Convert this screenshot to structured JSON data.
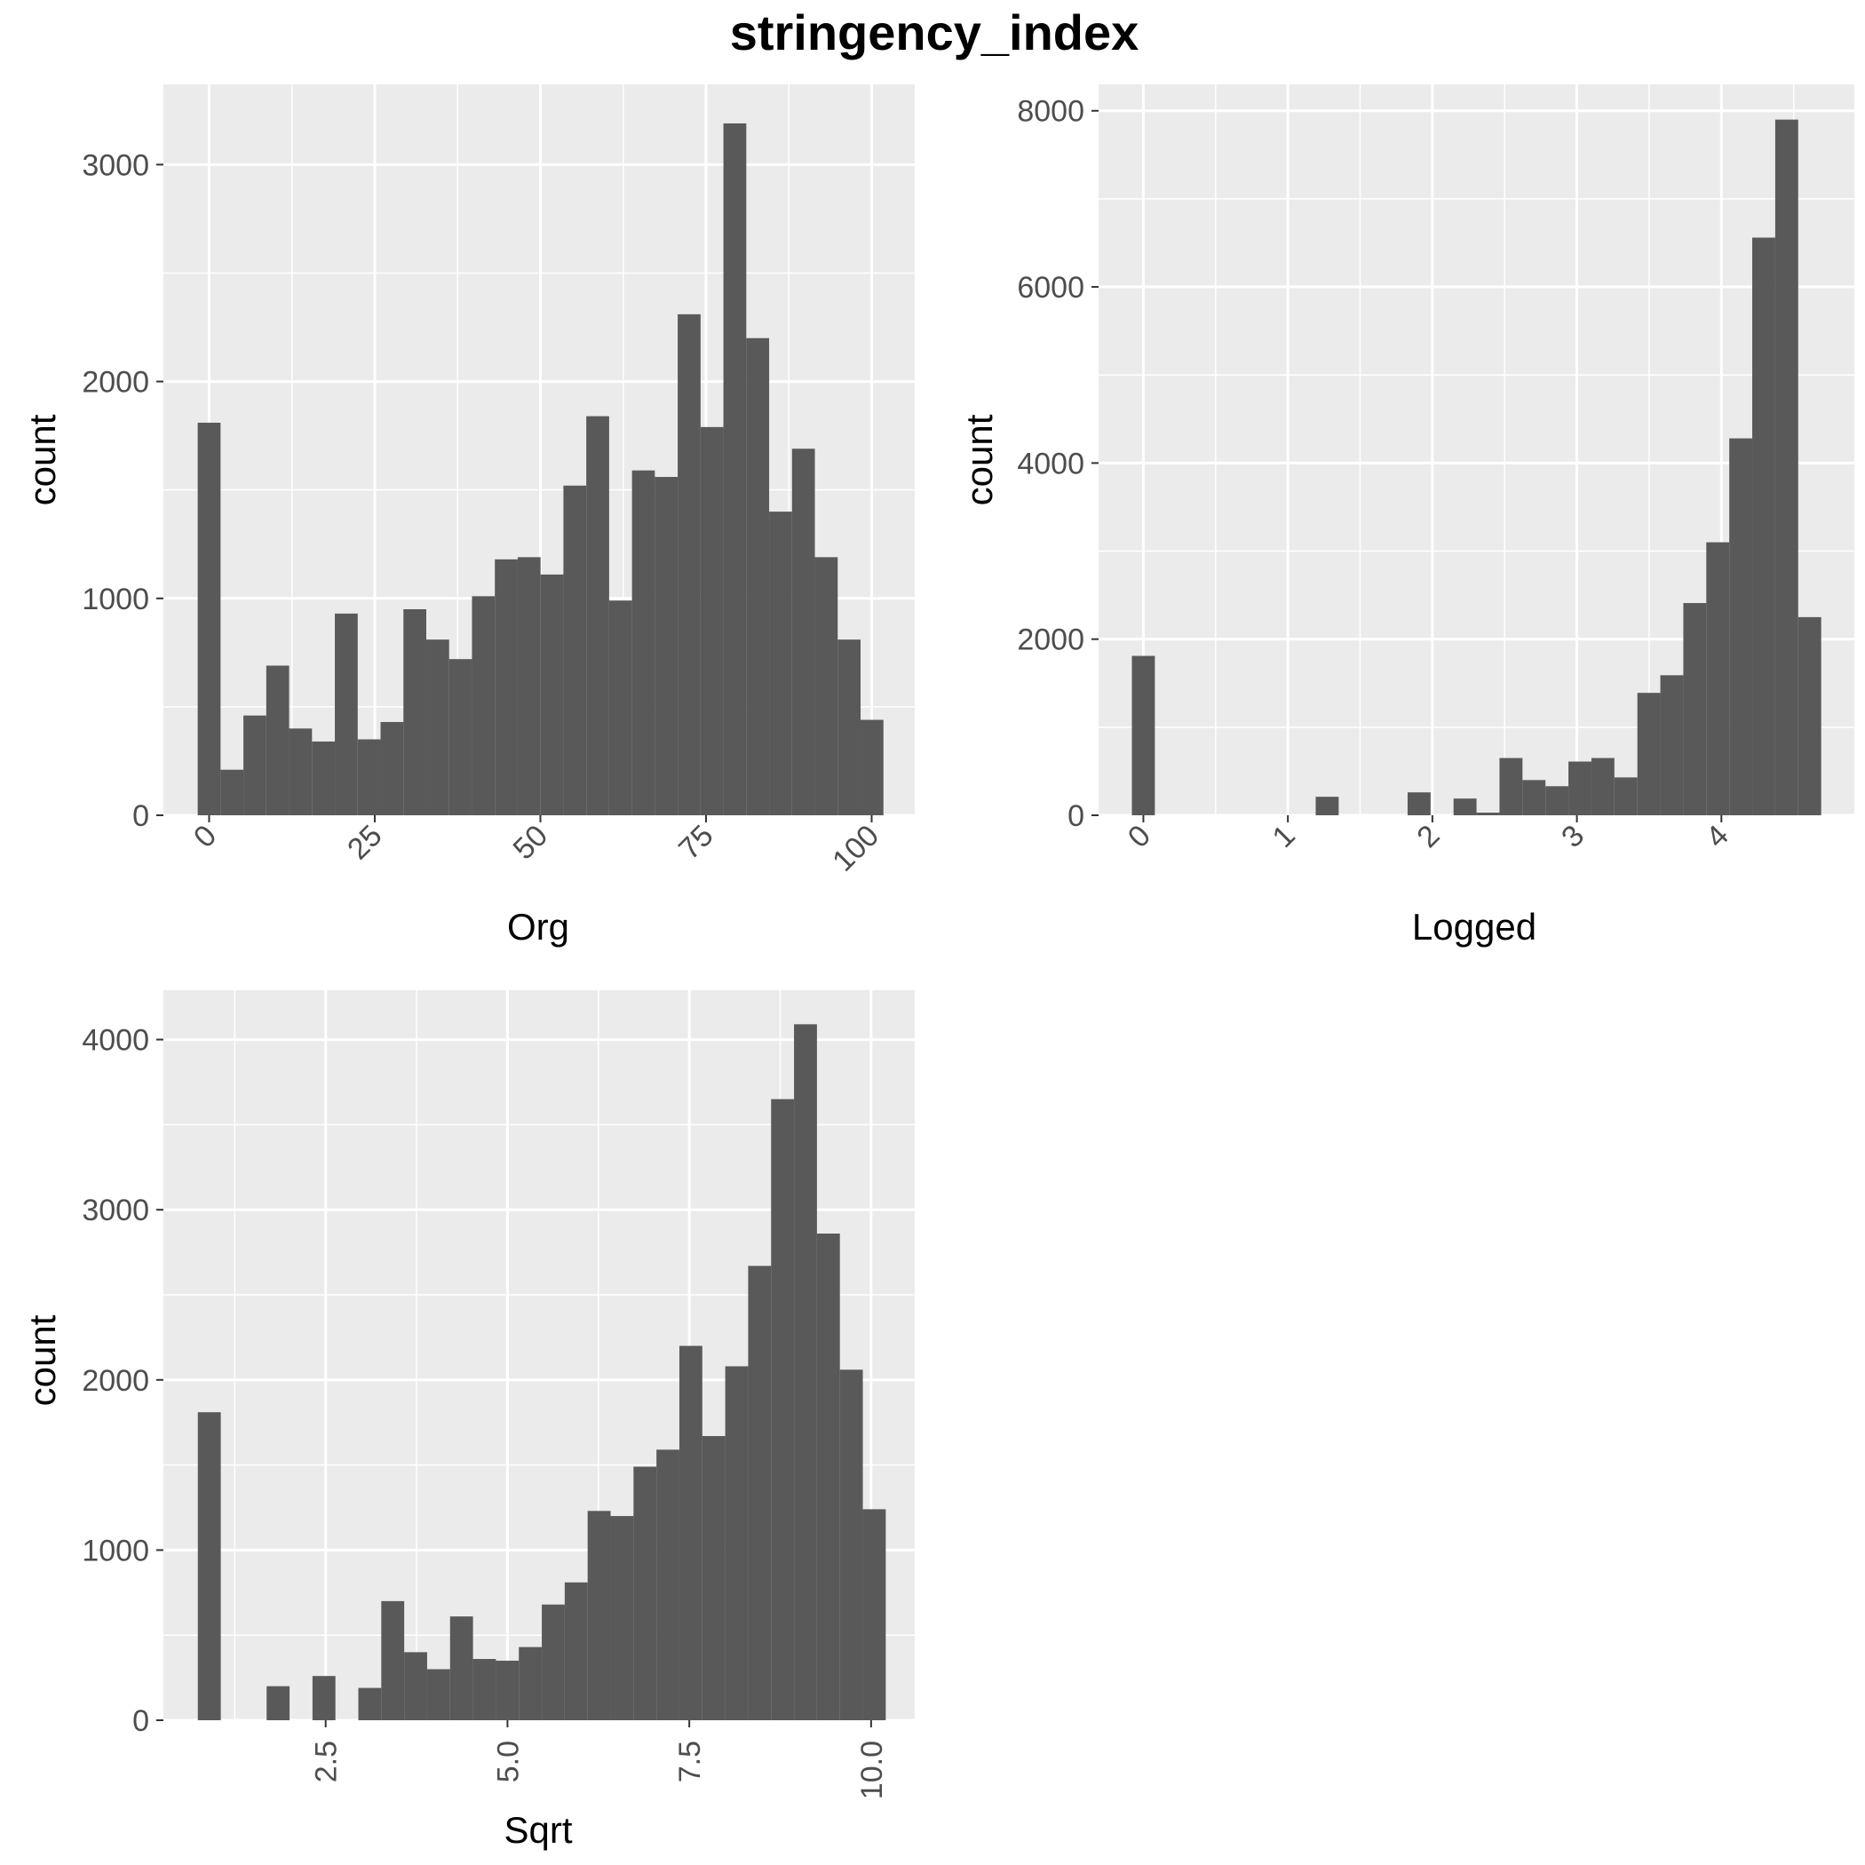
{
  "title": "stringency_index",
  "colors": {
    "panel_bg": "#ebebeb",
    "grid_major": "#ffffff",
    "bar_fill": "#595959",
    "tick_text": "#4d4d4d"
  },
  "chart_data": [
    {
      "type": "bar",
      "xlabel": "Org",
      "ylabel": "count",
      "x_ticks": [
        0,
        25,
        50,
        75,
        100
      ],
      "x_tick_labels": [
        "0",
        "25",
        "50",
        "75",
        "100"
      ],
      "y_ticks": [
        0,
        1000,
        2000,
        3000
      ],
      "y_tick_labels": [
        "0",
        "1000",
        "2000",
        "3000"
      ],
      "xlim": [
        -6.9,
        106.5
      ],
      "ylim": [
        0,
        3370
      ],
      "bin_width": 3.45,
      "bin_centers": [
        0,
        3.45,
        6.9,
        10.35,
        13.8,
        17.25,
        20.7,
        24.15,
        27.6,
        31.05,
        34.5,
        37.95,
        41.4,
        44.85,
        48.3,
        51.75,
        55.2,
        58.65,
        62.1,
        65.55,
        69,
        72.45,
        75.9,
        79.35,
        82.8,
        86.25,
        89.7,
        93.15,
        96.6,
        100.05
      ],
      "values": [
        1810,
        210,
        460,
        690,
        400,
        340,
        930,
        350,
        430,
        950,
        810,
        720,
        1010,
        1180,
        1190,
        1110,
        1520,
        1840,
        990,
        1590,
        1560,
        2310,
        1790,
        3190,
        2200,
        1400,
        1690,
        1190,
        810,
        440
      ],
      "grid": true
    },
    {
      "type": "bar",
      "xlabel": "Logged",
      "ylabel": "count",
      "x_ticks": [
        0,
        1,
        2,
        3,
        4
      ],
      "x_tick_labels": [
        "0",
        "1",
        "2",
        "3",
        "4"
      ],
      "y_ticks": [
        0,
        2000,
        4000,
        6000,
        8000
      ],
      "y_tick_labels": [
        "0",
        "2000",
        "4000",
        "6000",
        "8000"
      ],
      "xlim": [
        -0.31,
        4.92
      ],
      "ylim": [
        0,
        8300
      ],
      "bin_width": 0.159,
      "bin_centers": [
        0,
        0.159,
        0.318,
        0.477,
        0.636,
        0.795,
        0.954,
        1.113,
        1.272,
        1.431,
        1.59,
        1.749,
        1.908,
        2.067,
        2.226,
        2.385,
        2.544,
        2.703,
        2.862,
        3.021,
        3.18,
        3.339,
        3.498,
        3.657,
        3.816,
        3.975,
        4.134,
        4.293,
        4.452,
        4.611
      ],
      "values": [
        1810,
        0,
        0,
        0,
        0,
        0,
        0,
        0,
        210,
        0,
        0,
        0,
        260,
        0,
        190,
        30,
        650,
        400,
        330,
        610,
        650,
        430,
        1390,
        1590,
        2410,
        3100,
        4280,
        6560,
        7900,
        2250
      ],
      "grid": true
    },
    {
      "type": "bar",
      "xlabel": "Sqrt",
      "ylabel": "count",
      "x_ticks": [
        2.5,
        5.0,
        7.5,
        10.0
      ],
      "x_tick_labels": [
        "2.5",
        "5.0",
        "7.5",
        "10.0"
      ],
      "y_ticks": [
        0,
        1000,
        2000,
        3000,
        4000
      ],
      "y_tick_labels": [
        "0",
        "1000",
        "2000",
        "3000",
        "4000"
      ],
      "xlim": [
        0.269,
        10.6
      ],
      "ylim": [
        0,
        4290
      ],
      "bin_width": 0.3153,
      "bin_centers": [
        0.9,
        1.2153,
        1.5306,
        1.8459,
        2.1612,
        2.4765,
        2.7918,
        3.1071,
        3.4224,
        3.7377,
        4.053,
        4.3683,
        4.6836,
        4.9989,
        5.3142,
        5.6295,
        5.9448,
        6.2601,
        6.5754,
        6.8907,
        7.206,
        7.5213,
        7.8366,
        8.1519,
        8.4672,
        8.7825,
        9.0978,
        9.4131,
        9.7284,
        10.0437
      ],
      "values": [
        1810,
        0,
        0,
        200,
        0,
        260,
        0,
        190,
        700,
        400,
        300,
        610,
        360,
        350,
        430,
        680,
        810,
        1230,
        1200,
        1490,
        1590,
        2200,
        1670,
        2080,
        2670,
        3650,
        4090,
        2860,
        2060,
        1240
      ],
      "grid": true
    }
  ]
}
